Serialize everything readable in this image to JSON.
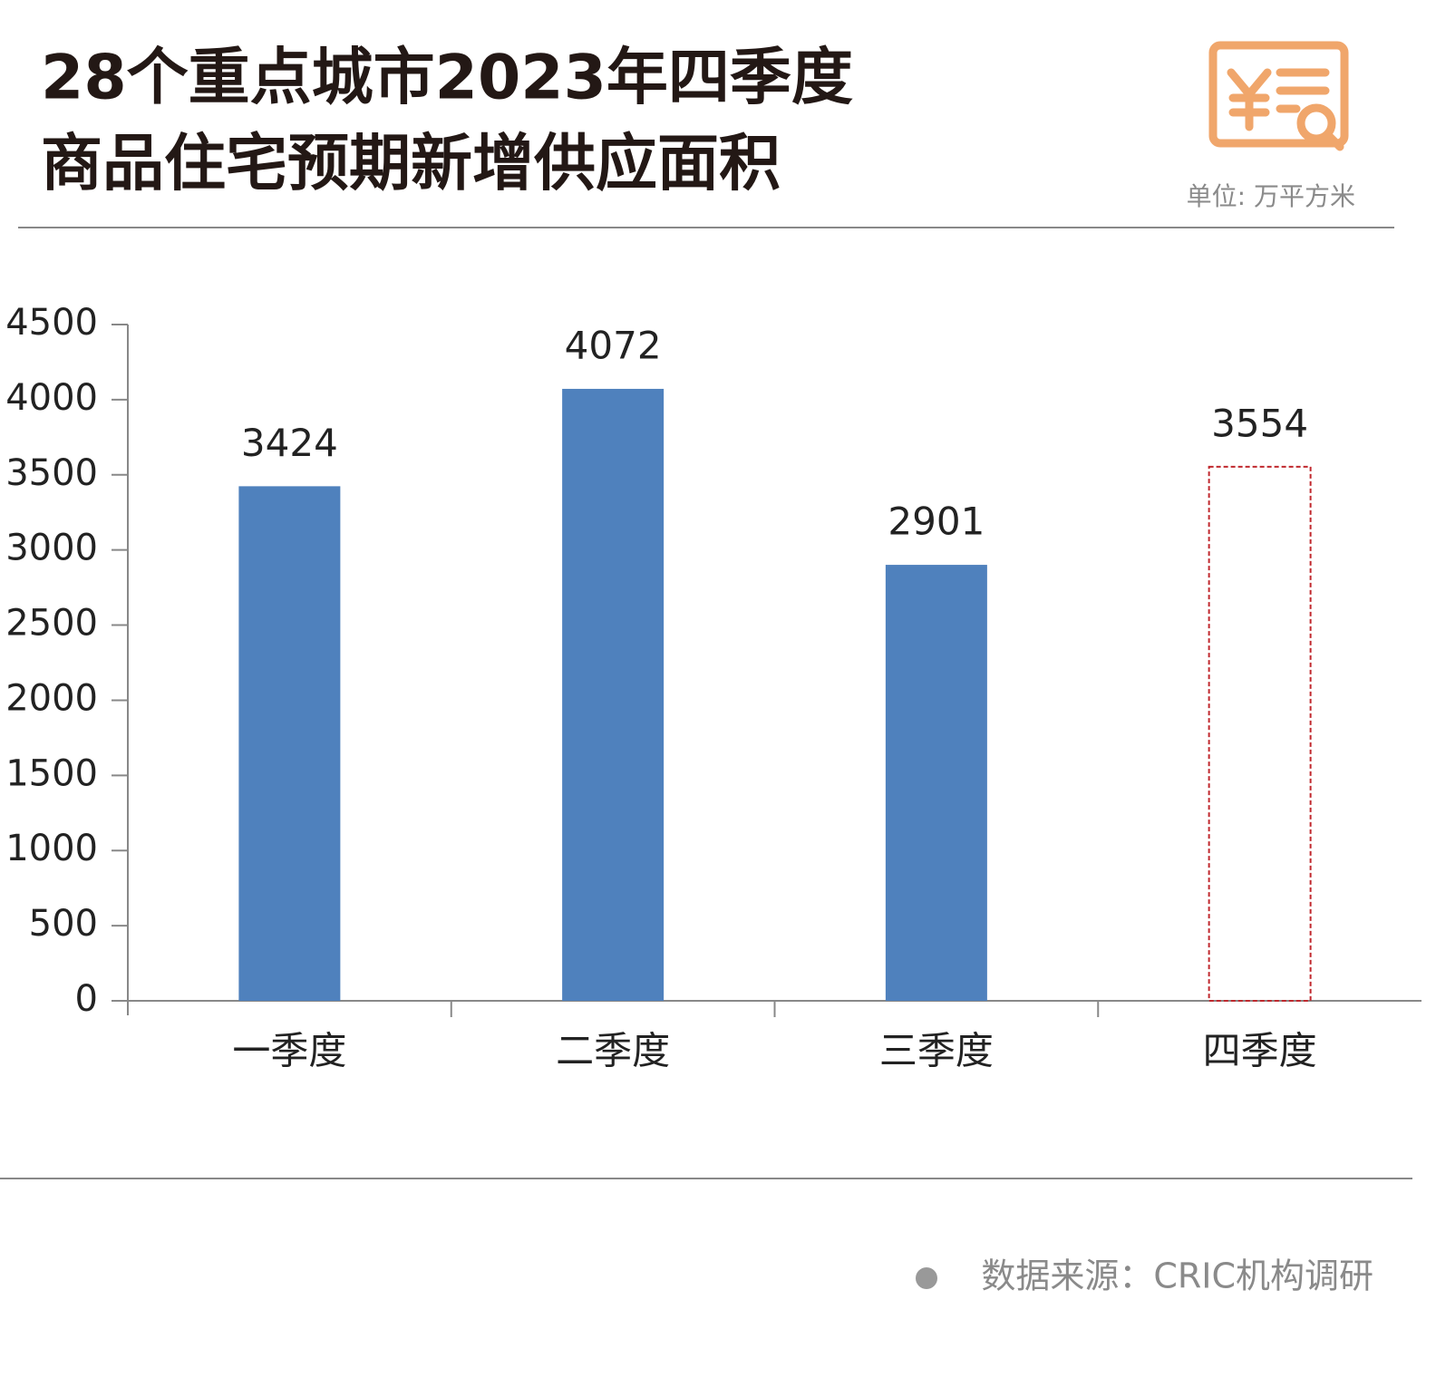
{
  "chart_data": {
    "type": "bar",
    "title_lines": [
      "28个重点城市2023年四季度",
      "商品住宅预期新增供应面积"
    ],
    "unit": "单位: 万平方米",
    "source": "数据来源：CRIC机构调研",
    "categories": [
      "一季度",
      "二季度",
      "三季度",
      "四季度"
    ],
    "values": [
      3424,
      4072,
      2901,
      3554
    ],
    "color": "#4f81bd",
    "dashed_color": "#c0282d",
    "bar_styles": [
      "solid",
      "solid",
      "solid",
      "dashed"
    ],
    "ylim": [
      0,
      4500
    ],
    "yticks": [
      0,
      500,
      1000,
      1500,
      2000,
      2500,
      3000,
      3500,
      4000,
      4500
    ],
    "grid": false
  }
}
